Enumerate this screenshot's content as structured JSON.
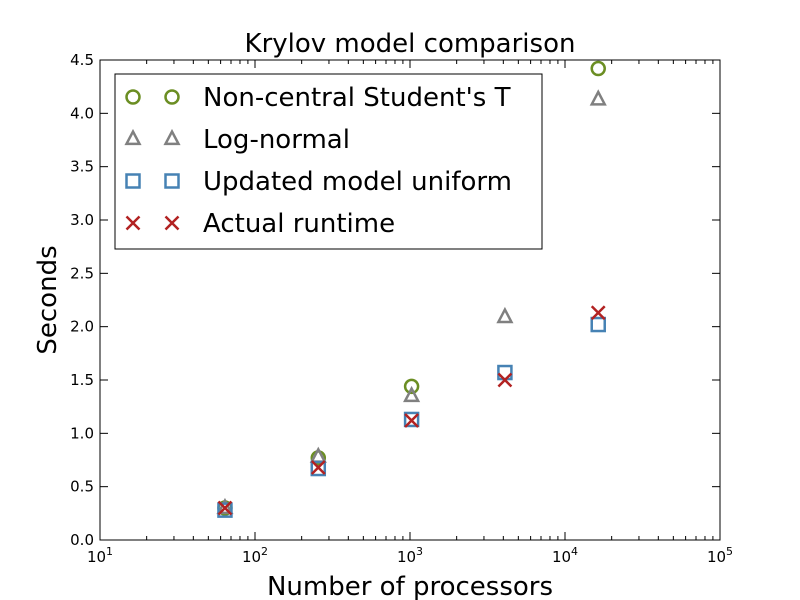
{
  "chart_data": {
    "type": "scatter",
    "title": "Krylov model comparison",
    "xlabel": "Number of processors",
    "ylabel": "Seconds",
    "xscale": "log",
    "xlim": [
      10,
      100000
    ],
    "ylim": [
      0,
      4.5
    ],
    "x_ticks": [
      {
        "value": 10,
        "base": "10",
        "exp": "1"
      },
      {
        "value": 100,
        "base": "10",
        "exp": "2"
      },
      {
        "value": 1000,
        "base": "10",
        "exp": "3"
      },
      {
        "value": 10000,
        "base": "10",
        "exp": "4"
      },
      {
        "value": 100000,
        "base": "10",
        "exp": "5"
      }
    ],
    "y_ticks": [
      "0.0",
      "0.5",
      "1.0",
      "1.5",
      "2.0",
      "2.5",
      "3.0",
      "3.5",
      "4.0",
      "4.5"
    ],
    "grid": false,
    "legend_position": "top-left",
    "series": [
      {
        "name": "Non-central Student's T",
        "marker": "circle",
        "color": "#6b8e23",
        "x": [
          64,
          256,
          1024,
          16384
        ],
        "y": [
          0.3,
          0.77,
          1.44,
          4.42
        ]
      },
      {
        "name": "Log-normal",
        "marker": "triangle",
        "color": "#808080",
        "x": [
          64,
          256,
          1024,
          4096,
          16384
        ],
        "y": [
          0.3,
          0.78,
          1.35,
          2.09,
          4.13
        ]
      },
      {
        "name": "Updated model uniform",
        "marker": "square",
        "color": "#4682b4",
        "x": [
          64,
          256,
          1024,
          4096,
          16384
        ],
        "y": [
          0.28,
          0.67,
          1.13,
          1.57,
          2.02
        ]
      },
      {
        "name": "Actual runtime",
        "marker": "x",
        "color": "#b22222",
        "x": [
          64,
          256,
          1024,
          4096,
          16384
        ],
        "y": [
          0.3,
          0.68,
          1.12,
          1.5,
          2.13
        ]
      }
    ]
  }
}
